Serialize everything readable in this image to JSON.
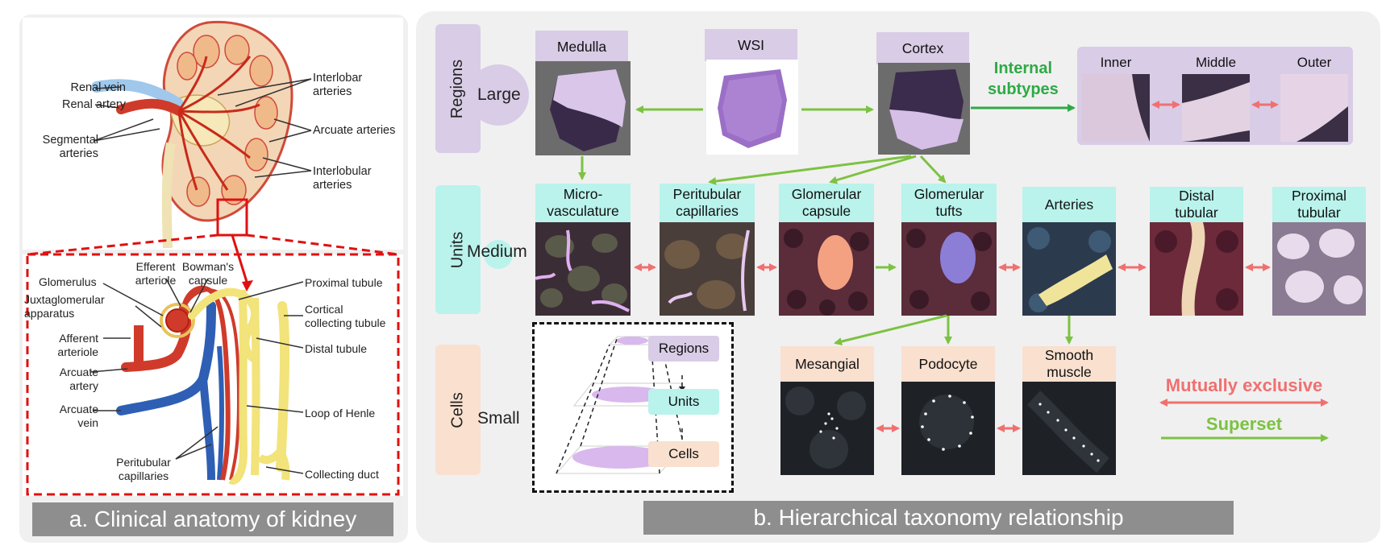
{
  "panel_a": {
    "caption": "a. Clinical anatomy of kidney",
    "top_labels": {
      "renal_vein": "Renal vein",
      "renal_artery": "Renal artery",
      "segmental_arteries": "Segmental\narteries",
      "interlobar_arteries": "Interlobar\narteries",
      "arcuate_arteries": "Arcuate arteries",
      "interlobular_arteries": "Interlobular\narteries"
    },
    "bottom_labels": {
      "efferent_arteriole": "Efferent\narteriole",
      "bowmans_capsule": "Bowman's\ncapsule",
      "glomerulus": "Glomerulus",
      "juxtaglomerular_apparatus": "Juxtaglomerular\napparatus",
      "afferent_arteriole": "Afferent\narteriole",
      "arcuate_artery": "Arcuate\nartery",
      "arcuate_vein": "Arcuate\nvein",
      "peritubular_capillaries": "Peritubular\ncapillaries",
      "proximal_tubule": "Proximal tubule",
      "cortical_collecting_tubule": "Cortical\ncollecting tubule",
      "distal_tubule": "Distal tubule",
      "loop_of_henle": "Loop of Henle",
      "collecting_duct": "Collecting duct"
    }
  },
  "panel_b": {
    "caption": "b. Hierarchical taxonomy relationship",
    "rows": {
      "regions": {
        "tag": "Regions",
        "scale": "Large"
      },
      "units": {
        "tag": "Units",
        "scale": "Medium"
      },
      "cells": {
        "tag": "Cells",
        "scale": "Small"
      }
    },
    "regions": {
      "medulla": "Medulla",
      "wsi": "WSI",
      "cortex": "Cortex",
      "internal_subtypes": "Internal\nsubtypes",
      "inner": "Inner",
      "middle": "Middle",
      "outer": "Outer"
    },
    "units": {
      "microvasculature": "Micro-\nvasculature",
      "peritubular_capillaries": "Peritubular\ncapillaries",
      "glomerular_capsule": "Glomerular\ncapsule",
      "glomerular_tufts": "Glomerular\ntufts",
      "arteries": "Arteries",
      "distal_tubular": "Distal\ntubular",
      "proximal_tubular": "Proximal\ntubular"
    },
    "cells": {
      "mesangial": "Mesangial",
      "podocyte": "Podocyte",
      "smooth_muscle": "Smooth\nmuscle"
    },
    "pyramid": {
      "regions": "Regions",
      "units": "Units",
      "cells": "Cells"
    },
    "legend": {
      "mutually_exclusive": "Mutually exclusive",
      "superset": "Superset"
    },
    "colors": {
      "regions_tag": "#d9cce6",
      "units_tag": "#b9f3ec",
      "cells_tag": "#f9e0cf",
      "superset_arrow": "#7cc242",
      "exclusive_arrow": "#f07070",
      "green_title": "#2eaa45"
    }
  }
}
